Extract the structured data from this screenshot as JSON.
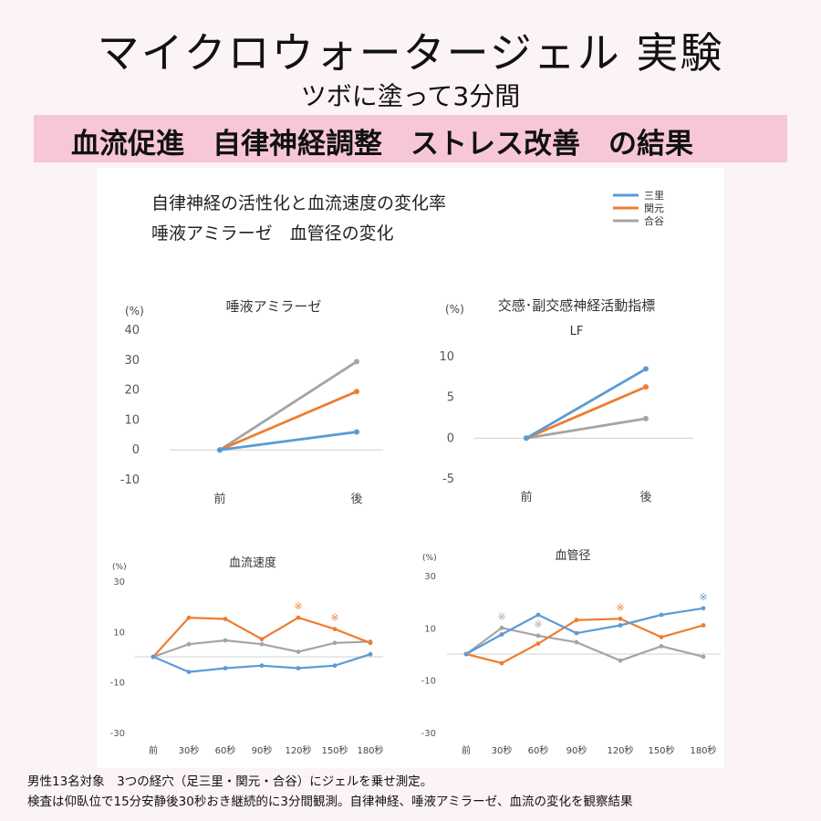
{
  "header": {
    "title": "マイクロウォータージェル 実験",
    "subtitle": "ツボに塗って3分間",
    "band": "血流促進　自律神経調整　ストレス改善　の結果"
  },
  "panel": {
    "heading_line1": "自律神経の活性化と血流速度の変化率",
    "heading_line2": "唾液アミラーゼ　血管径の変化"
  },
  "legend": [
    {
      "name": "三里",
      "color": "#5b9bd5"
    },
    {
      "name": "関元",
      "color": "#ed7d31"
    },
    {
      "name": "合谷",
      "color": "#a5a5a5"
    }
  ],
  "chart_data": [
    {
      "type": "line",
      "title": "唾液アミラーゼ",
      "ylabel": "(%)",
      "categories": [
        "前",
        "後"
      ],
      "ylim": [
        -10,
        40
      ],
      "yticks": [
        "40",
        "30",
        "20",
        "10",
        "0",
        "-10"
      ],
      "series": [
        {
          "name": "三里",
          "values": [
            0,
            6
          ]
        },
        {
          "name": "関元",
          "values": [
            0,
            19.5
          ]
        },
        {
          "name": "合谷",
          "values": [
            0,
            29.5
          ]
        }
      ]
    },
    {
      "type": "line",
      "title": "交感･副交感神経活動指標",
      "subtitle": "LF",
      "ylabel": "(%)",
      "categories": [
        "前",
        "後"
      ],
      "ylim": [
        -5,
        10
      ],
      "yticks": [
        "10",
        "5",
        "0",
        "-5"
      ],
      "series": [
        {
          "name": "三里",
          "values": [
            0,
            8.5
          ]
        },
        {
          "name": "関元",
          "values": [
            0,
            6.3
          ]
        },
        {
          "name": "合谷",
          "values": [
            0,
            2.4
          ]
        }
      ]
    },
    {
      "type": "line",
      "title": "血流速度",
      "ylabel": "(%)",
      "categories": [
        "前",
        "30秒",
        "60秒",
        "90秒",
        "120秒",
        "150秒",
        "180秒"
      ],
      "ylim": [
        -30,
        30
      ],
      "yticks": [
        "30",
        "10",
        "-10",
        "-30"
      ],
      "series": [
        {
          "name": "三里",
          "values": [
            0,
            -6,
            -4.5,
            -3.5,
            -4.5,
            -3.5,
            1
          ]
        },
        {
          "name": "関元",
          "values": [
            0,
            15.5,
            15,
            7,
            15.5,
            11,
            5.5
          ]
        },
        {
          "name": "合谷",
          "values": [
            0,
            5,
            6.5,
            5,
            2,
            5.5,
            6
          ]
        }
      ],
      "annotations": [
        {
          "text": "※",
          "category": "120秒",
          "series": "関元"
        },
        {
          "text": "※",
          "category": "150秒",
          "series": "関元"
        }
      ]
    },
    {
      "type": "line",
      "title": "血管径",
      "ylabel": "(%)",
      "categories": [
        "前",
        "30秒",
        "60秒",
        "90秒",
        "120秒",
        "150秒",
        "180秒"
      ],
      "ylim": [
        -30,
        30
      ],
      "yticks": [
        "30",
        "10",
        "-10",
        "-30"
      ],
      "series": [
        {
          "name": "三里",
          "values": [
            0,
            7.5,
            15,
            8,
            11,
            15,
            17.5
          ]
        },
        {
          "name": "関元",
          "values": [
            0,
            -3.5,
            4,
            13,
            13.5,
            6.5,
            11
          ]
        },
        {
          "name": "合谷",
          "values": [
            0,
            10,
            7,
            4.5,
            -2.5,
            3,
            -1
          ]
        }
      ],
      "annotations": [
        {
          "text": "※",
          "category": "30秒",
          "series": "合谷"
        },
        {
          "text": "※",
          "category": "60秒",
          "series": "合谷"
        },
        {
          "text": "※",
          "category": "120秒",
          "series": "関元"
        },
        {
          "text": "※",
          "category": "180秒",
          "series": "三里"
        }
      ]
    }
  ],
  "footer": {
    "line1": "男性13名対象　3つの経穴（足三里・関元・合谷）にジェルを乗せ測定。",
    "line2": "検査は仰臥位で15分安静後30秒おき継続的に3分間観測。自律神経、唾液アミラーゼ、血流の変化を観察結果"
  }
}
